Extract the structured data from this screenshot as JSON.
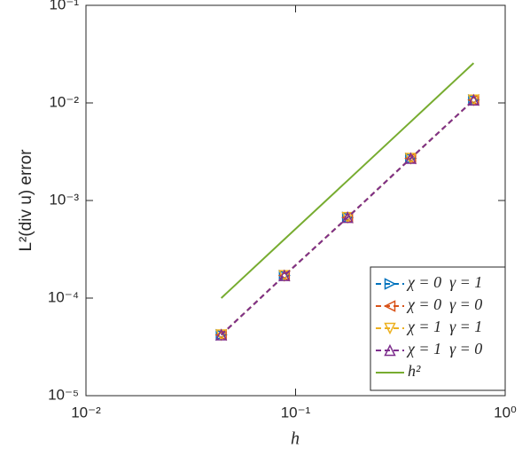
{
  "chart_data": {
    "type": "line",
    "xlabel": "h",
    "ylabel": "L²(div u) error",
    "log_x": true,
    "log_y": true,
    "x": [
      0.0442,
      0.0884,
      0.177,
      0.354,
      0.707
    ],
    "series": [
      {
        "name": "χ = 0  γ = 1",
        "color": "#0072bd",
        "marker": "triangle-right",
        "dashed": true,
        "values": [
          4.2e-05,
          0.00017,
          0.00067,
          0.0027,
          0.0107
        ]
      },
      {
        "name": "χ = 0  γ = 0",
        "color": "#d95319",
        "marker": "triangle-left",
        "dashed": true,
        "values": [
          4.2e-05,
          0.00017,
          0.00067,
          0.0027,
          0.0107
        ]
      },
      {
        "name": "χ = 1  γ = 1",
        "color": "#edb120",
        "marker": "triangle-down",
        "dashed": true,
        "values": [
          4.2e-05,
          0.00017,
          0.00067,
          0.0027,
          0.0107
        ]
      },
      {
        "name": "χ = 1  γ = 0",
        "color": "#7e2f8e",
        "marker": "triangle-up",
        "dashed": true,
        "values": [
          4.2e-05,
          0.00017,
          0.00067,
          0.0027,
          0.0107
        ]
      },
      {
        "name": "h²",
        "color": "#77ac30",
        "marker": "none",
        "dashed": false,
        "values": [
          0.0001,
          0.0004,
          0.0016,
          0.0064,
          0.0256
        ]
      }
    ],
    "xlim": [
      0.01,
      1
    ],
    "xticks": [
      {
        "value": 0.01,
        "label": "10⁻²"
      },
      {
        "value": 0.1,
        "label": "10⁻¹"
      },
      {
        "value": 1,
        "label": "10⁰"
      }
    ],
    "ylim": [
      1e-05,
      0.1
    ],
    "yticks": [
      {
        "value": 1e-05,
        "label": "10⁻⁵"
      },
      {
        "value": 0.0001,
        "label": "10⁻⁴"
      },
      {
        "value": 0.001,
        "label": "10⁻³"
      },
      {
        "value": 0.01,
        "label": "10⁻²"
      },
      {
        "value": 0.1,
        "label": "10⁻¹"
      }
    ],
    "grid": false,
    "legend": "bottom-right"
  }
}
